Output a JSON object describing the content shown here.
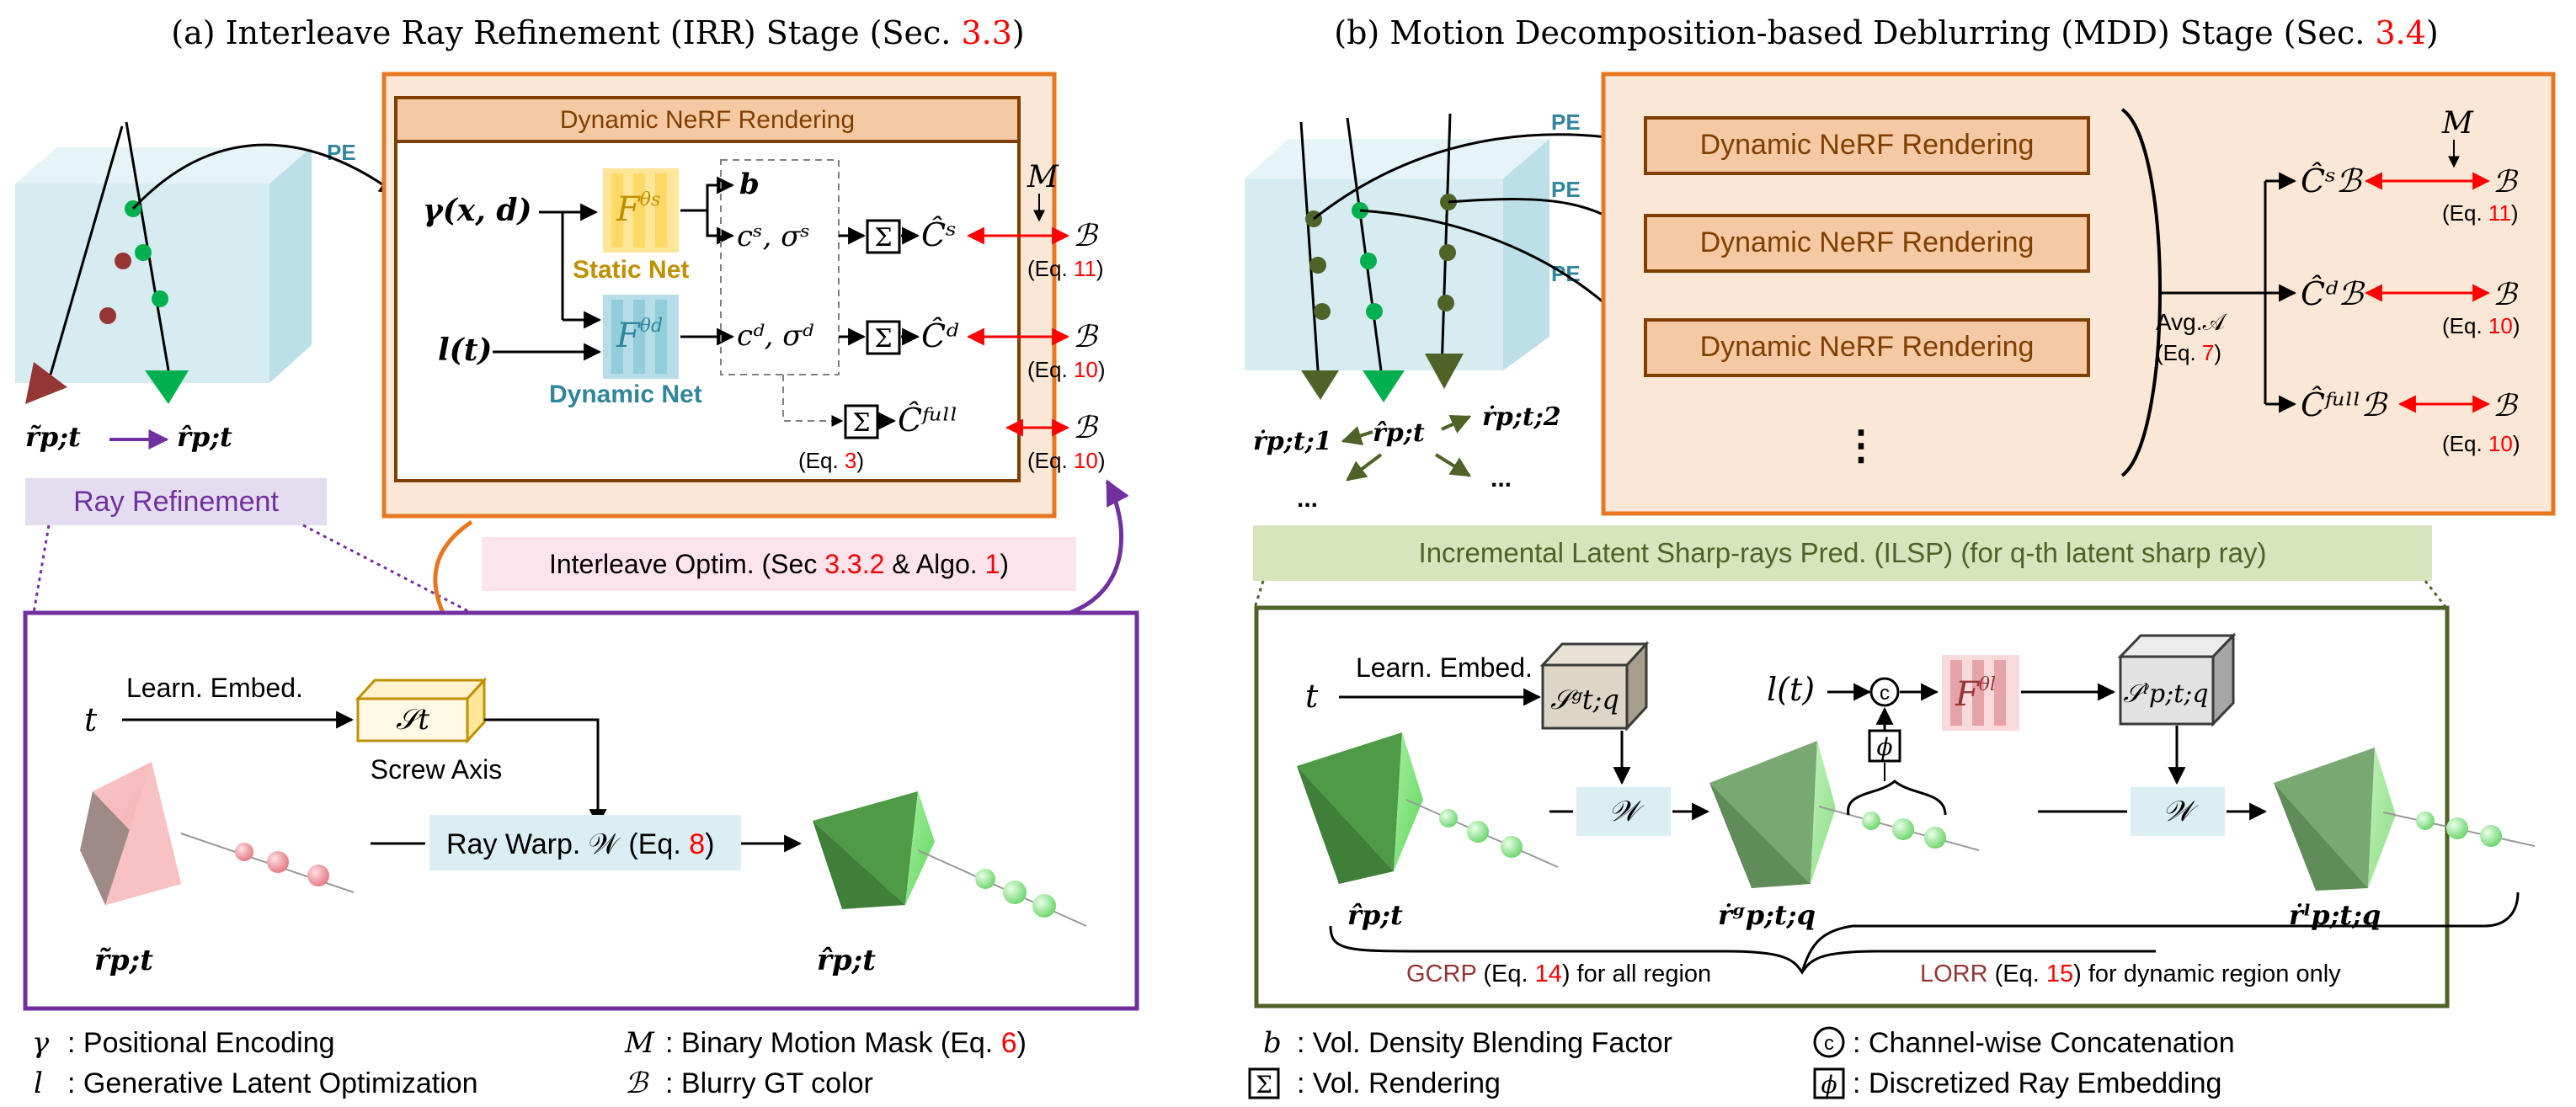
{
  "colors": {
    "orange": "#e87722",
    "orange_fill": "#fbe7d6",
    "render_fill": "#f5c9a3",
    "purple": "#7030a0",
    "purple_fill": "#e4dcef",
    "green_dark": "#4f6228",
    "green_fill": "#d8e4bc",
    "pink_fill": "#fde4ec",
    "red": "#ff0000",
    "brown": "#943634",
    "teal": "#31859c",
    "gold": "#bf9000",
    "blue_fill": "#dbeef4",
    "cube": "#cfe9ef"
  },
  "stage_a": {
    "title_prefix": "(a) Interleave Ray Refinement (IRR) Stage (Sec. ",
    "title_ref": "3.3",
    "title_suffix": ")",
    "pe": "PE",
    "rendering_title": "Dynamic NeRF Rendering",
    "gamma_input": "γ(x, d)",
    "lt_input": "l(t)",
    "static_net": "Static Net",
    "dynamic_net": "Dynamic Net",
    "f_static": "F",
    "f_static_sub": "θs",
    "f_dynamic": "F",
    "f_dynamic_sub": "θd",
    "b_out": "b",
    "cs_out": "cˢ, σˢ",
    "cd_out": "cᵈ, σᵈ",
    "sigma": "Σ",
    "c_hat_s": "Ĉˢ",
    "c_hat_d": "Ĉᵈ",
    "c_hat_full": "Ĉᶠᵘˡˡ",
    "mask": "M",
    "blurry": "ℬ",
    "eq11": "11",
    "eq10": "10",
    "eq3": "3",
    "eq_prefix": "(Eq. ",
    "eq_suffix": ")",
    "ray_tilde": "r̃p;t",
    "ray_hat": "r̂p;t",
    "ray_refinement": "Ray Refinement",
    "interleave_prefix": "Interleave Optim. (Sec ",
    "interleave_ref1": "3.3.2",
    "interleave_mid": " & Algo. ",
    "interleave_ref2": "1",
    "interleave_suffix": ")",
    "t_input": "t",
    "learn_embed": "Learn. Embed.",
    "screw_symbol": "𝒮t",
    "screw_axis": "Screw Axis",
    "ray_warp": "Ray Warp. 𝒲",
    "ray_warp_eq": "8"
  },
  "stage_b": {
    "title_prefix": "(b) Motion Decomposition-based Deblurring (MDD) Stage (Sec. ",
    "title_ref": "3.4",
    "title_suffix": ")",
    "pe": "PE",
    "rendering_boxes": [
      "Dynamic NeRF Rendering",
      "Dynamic NeRF Rendering",
      "Dynamic NeRF Rendering"
    ],
    "vdots": "⋮",
    "avg": "Avg.𝒜",
    "avg_eq": "7",
    "c_b_s": "Ĉˢℬ",
    "c_b_d": "Ĉᵈℬ",
    "c_b_full": "Ĉᶠᵘˡˡℬ",
    "mask": "M",
    "blurry": "ℬ",
    "eq11": "11",
    "eq10a": "10",
    "eq10b": "10",
    "ray_1": "ṙp;t;1",
    "ray_hat": "r̂p;t",
    "ray_2": "ṙp;t;2",
    "dots": "...",
    "ilsp_title": "Incremental Latent Sharp-rays Pred. (ILSP) (for q-th latent sharp ray)",
    "t_input": "t",
    "learn_embed": "Learn. Embed.",
    "s_g": "𝒮ᵍt;q",
    "lt_input": "l(t)",
    "concat_symbol": "c",
    "phi_symbol": "ϕ",
    "f_l": "F",
    "f_l_sub": "θl",
    "s_l": "𝒮ˡp;t;q",
    "warp_symbol": "𝒲",
    "ray_hat_pt": "r̂p;t",
    "ray_g": "ṙᵍp;t;q",
    "ray_l": "ṙˡp;t;q",
    "gcrp_label": "GCRP",
    "gcrp_text_prefix": " (Eq. ",
    "gcrp_eq": "14",
    "gcrp_text_suffix": ") for all region",
    "lorr_label": "LORR",
    "lorr_text_prefix": " (Eq. ",
    "lorr_eq": "15",
    "lorr_text_suffix": ") for dynamic region only"
  },
  "legend": {
    "gamma_sym": "γ",
    "gamma_text": ": Positional Encoding",
    "l_sym": "l",
    "l_text": ": Generative Latent Optimization",
    "m_sym": "M",
    "m_text_prefix": ": Binary Motion Mask (Eq. ",
    "m_eq": "6",
    "m_text_suffix": ")",
    "b_sym": "ℬ",
    "b_text": ": Blurry GT color",
    "bb_sym": "b",
    "bb_text": ": Vol. Density Blending Factor",
    "sigma_sym": "Σ",
    "sigma_text": ": Vol. Rendering",
    "c_sym": "c",
    "c_text": ": Channel-wise Concatenation",
    "phi_sym": "ϕ",
    "phi_text": ": Discretized Ray Embedding"
  }
}
